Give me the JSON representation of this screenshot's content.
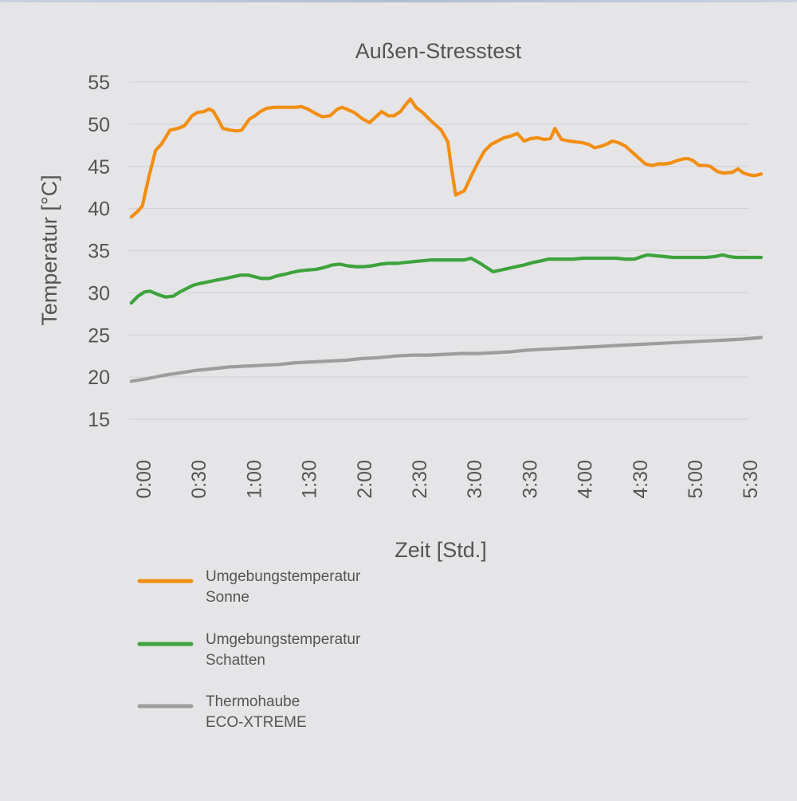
{
  "chart_data": {
    "type": "line",
    "title": "Außen-Stresstest",
    "xlabel": "Zeit [Std.]",
    "ylabel": "Temperatur [°C]",
    "ylim": [
      15,
      55
    ],
    "xlim": [
      0,
      5.5
    ],
    "yticks": [
      "15",
      "20",
      "25",
      "30",
      "35",
      "40",
      "45",
      "50",
      "55"
    ],
    "xticks": [
      {
        "label": "0:00",
        "x": 0
      },
      {
        "label": "0:30",
        "x": 0.5
      },
      {
        "label": "1:00",
        "x": 1.0
      },
      {
        "label": "1:30",
        "x": 1.5
      },
      {
        "label": "2:00",
        "x": 2.0
      },
      {
        "label": "2:30",
        "x": 2.5
      },
      {
        "label": "3:00",
        "x": 3.0
      },
      {
        "label": "3:30",
        "x": 3.5
      },
      {
        "label": "4:00",
        "x": 4.0
      },
      {
        "label": "4:30",
        "x": 4.5
      },
      {
        "label": "5:00",
        "x": 5.0
      },
      {
        "label": "5:30",
        "x": 5.5
      }
    ],
    "grid": true,
    "legend_position": "bottom-left",
    "series": [
      {
        "name": "Umgebungstemperatur Sonne",
        "name_lines": [
          "Umgebungstemperatur",
          "Sonne"
        ],
        "color": "#f28e12",
        "points": [
          [
            -0.11,
            39.0
          ],
          [
            -0.05,
            39.7
          ],
          [
            -0.01,
            40.3
          ],
          [
            0.05,
            43.8
          ],
          [
            0.11,
            46.9
          ],
          [
            0.16,
            47.6
          ],
          [
            0.19,
            48.2
          ],
          [
            0.24,
            49.3
          ],
          [
            0.31,
            49.5
          ],
          [
            0.37,
            49.8
          ],
          [
            0.44,
            51.0
          ],
          [
            0.49,
            51.4
          ],
          [
            0.55,
            51.5
          ],
          [
            0.59,
            51.8
          ],
          [
            0.63,
            51.6
          ],
          [
            0.68,
            50.5
          ],
          [
            0.72,
            49.5
          ],
          [
            0.79,
            49.3
          ],
          [
            0.85,
            49.2
          ],
          [
            0.89,
            49.3
          ],
          [
            0.96,
            50.6
          ],
          [
            1.01,
            51.0
          ],
          [
            1.06,
            51.5
          ],
          [
            1.12,
            51.9
          ],
          [
            1.19,
            52.0
          ],
          [
            1.25,
            52.0
          ],
          [
            1.31,
            52.0
          ],
          [
            1.38,
            52.0
          ],
          [
            1.43,
            52.1
          ],
          [
            1.49,
            51.8
          ],
          [
            1.57,
            51.2
          ],
          [
            1.62,
            50.9
          ],
          [
            1.69,
            51.0
          ],
          [
            1.76,
            51.8
          ],
          [
            1.8,
            52.0
          ],
          [
            1.84,
            51.8
          ],
          [
            1.91,
            51.4
          ],
          [
            1.99,
            50.6
          ],
          [
            2.05,
            50.2
          ],
          [
            2.1,
            50.8
          ],
          [
            2.16,
            51.5
          ],
          [
            2.22,
            51.0
          ],
          [
            2.27,
            51.0
          ],
          [
            2.33,
            51.5
          ],
          [
            2.37,
            52.2
          ],
          [
            2.42,
            53.0
          ],
          [
            2.47,
            52.0
          ],
          [
            2.53,
            51.4
          ],
          [
            2.6,
            50.5
          ],
          [
            2.65,
            49.9
          ],
          [
            2.7,
            49.3
          ],
          [
            2.76,
            47.9
          ],
          [
            2.79,
            45.0
          ],
          [
            2.83,
            41.6
          ],
          [
            2.91,
            42.1
          ],
          [
            2.97,
            43.8
          ],
          [
            3.03,
            45.4
          ],
          [
            3.09,
            46.8
          ],
          [
            3.15,
            47.6
          ],
          [
            3.21,
            48.0
          ],
          [
            3.27,
            48.4
          ],
          [
            3.33,
            48.6
          ],
          [
            3.39,
            48.9
          ],
          [
            3.45,
            48.0
          ],
          [
            3.51,
            48.3
          ],
          [
            3.57,
            48.4
          ],
          [
            3.63,
            48.2
          ],
          [
            3.69,
            48.3
          ],
          [
            3.73,
            49.5
          ],
          [
            3.79,
            48.2
          ],
          [
            3.86,
            48.0
          ],
          [
            3.92,
            47.9
          ],
          [
            3.98,
            47.8
          ],
          [
            4.04,
            47.6
          ],
          [
            4.09,
            47.2
          ],
          [
            4.15,
            47.4
          ],
          [
            4.21,
            47.7
          ],
          [
            4.25,
            48.0
          ],
          [
            4.31,
            47.8
          ],
          [
            4.37,
            47.4
          ],
          [
            4.43,
            46.7
          ],
          [
            4.49,
            46.0
          ],
          [
            4.55,
            45.3
          ],
          [
            4.61,
            45.1
          ],
          [
            4.67,
            45.3
          ],
          [
            4.73,
            45.3
          ],
          [
            4.78,
            45.4
          ],
          [
            4.84,
            45.7
          ],
          [
            4.9,
            45.9
          ],
          [
            4.94,
            45.9
          ],
          [
            4.98,
            45.7
          ],
          [
            5.04,
            45.1
          ],
          [
            5.1,
            45.1
          ],
          [
            5.14,
            45.0
          ],
          [
            5.2,
            44.4
          ],
          [
            5.26,
            44.2
          ],
          [
            5.34,
            44.3
          ],
          [
            5.39,
            44.7
          ],
          [
            5.44,
            44.2
          ],
          [
            5.49,
            44.0
          ],
          [
            5.54,
            43.9
          ],
          [
            5.6,
            44.1
          ]
        ]
      },
      {
        "name": "Umgebungstemperatur Schatten",
        "name_lines": [
          "Umgebungstemperatur",
          "Schatten"
        ],
        "color": "#3da33c",
        "points": [
          [
            -0.11,
            28.8
          ],
          [
            -0.05,
            29.6
          ],
          [
            0.01,
            30.1
          ],
          [
            0.06,
            30.2
          ],
          [
            0.13,
            29.8
          ],
          [
            0.2,
            29.5
          ],
          [
            0.27,
            29.6
          ],
          [
            0.33,
            30.1
          ],
          [
            0.39,
            30.5
          ],
          [
            0.45,
            30.9
          ],
          [
            0.51,
            31.1
          ],
          [
            0.59,
            31.3
          ],
          [
            0.66,
            31.5
          ],
          [
            0.74,
            31.7
          ],
          [
            0.81,
            31.9
          ],
          [
            0.88,
            32.1
          ],
          [
            0.95,
            32.1
          ],
          [
            1.01,
            31.9
          ],
          [
            1.07,
            31.7
          ],
          [
            1.14,
            31.7
          ],
          [
            1.21,
            32.0
          ],
          [
            1.28,
            32.2
          ],
          [
            1.34,
            32.4
          ],
          [
            1.41,
            32.6
          ],
          [
            1.49,
            32.7
          ],
          [
            1.57,
            32.8
          ],
          [
            1.64,
            33.0
          ],
          [
            1.71,
            33.3
          ],
          [
            1.78,
            33.4
          ],
          [
            1.85,
            33.2
          ],
          [
            1.93,
            33.1
          ],
          [
            2.0,
            33.1
          ],
          [
            2.07,
            33.2
          ],
          [
            2.15,
            33.4
          ],
          [
            2.22,
            33.5
          ],
          [
            2.3,
            33.5
          ],
          [
            2.37,
            33.6
          ],
          [
            2.45,
            33.7
          ],
          [
            2.53,
            33.8
          ],
          [
            2.61,
            33.9
          ],
          [
            2.68,
            33.9
          ],
          [
            2.76,
            33.9
          ],
          [
            2.83,
            33.9
          ],
          [
            2.91,
            33.9
          ],
          [
            2.97,
            34.1
          ],
          [
            3.04,
            33.6
          ],
          [
            3.1,
            33.1
          ],
          [
            3.17,
            32.5
          ],
          [
            3.24,
            32.7
          ],
          [
            3.31,
            32.9
          ],
          [
            3.38,
            33.1
          ],
          [
            3.45,
            33.3
          ],
          [
            3.53,
            33.6
          ],
          [
            3.61,
            33.8
          ],
          [
            3.67,
            34.0
          ],
          [
            3.75,
            34.0
          ],
          [
            3.83,
            34.0
          ],
          [
            3.9,
            34.0
          ],
          [
            3.98,
            34.1
          ],
          [
            4.06,
            34.1
          ],
          [
            4.14,
            34.1
          ],
          [
            4.21,
            34.1
          ],
          [
            4.29,
            34.1
          ],
          [
            4.37,
            34.0
          ],
          [
            4.45,
            34.0
          ],
          [
            4.52,
            34.3
          ],
          [
            4.57,
            34.5
          ],
          [
            4.64,
            34.4
          ],
          [
            4.72,
            34.3
          ],
          [
            4.8,
            34.2
          ],
          [
            4.87,
            34.2
          ],
          [
            4.95,
            34.2
          ],
          [
            5.02,
            34.2
          ],
          [
            5.1,
            34.2
          ],
          [
            5.18,
            34.3
          ],
          [
            5.25,
            34.5
          ],
          [
            5.31,
            34.3
          ],
          [
            5.37,
            34.2
          ],
          [
            5.45,
            34.2
          ],
          [
            5.52,
            34.2
          ],
          [
            5.6,
            34.2
          ]
        ]
      },
      {
        "name": "Thermohaube ECO-XTREME",
        "name_lines": [
          "Thermohaube",
          "ECO-XTREME"
        ],
        "color": "#9d9d9d",
        "points": [
          [
            -0.11,
            19.5
          ],
          [
            0.03,
            19.8
          ],
          [
            0.18,
            20.2
          ],
          [
            0.33,
            20.5
          ],
          [
            0.48,
            20.8
          ],
          [
            0.63,
            21.0
          ],
          [
            0.78,
            21.2
          ],
          [
            0.93,
            21.3
          ],
          [
            1.08,
            21.4
          ],
          [
            1.23,
            21.5
          ],
          [
            1.38,
            21.7
          ],
          [
            1.53,
            21.8
          ],
          [
            1.68,
            21.9
          ],
          [
            1.83,
            22.0
          ],
          [
            1.98,
            22.2
          ],
          [
            2.13,
            22.3
          ],
          [
            2.28,
            22.5
          ],
          [
            2.43,
            22.6
          ],
          [
            2.58,
            22.6
          ],
          [
            2.73,
            22.7
          ],
          [
            2.88,
            22.8
          ],
          [
            3.03,
            22.8
          ],
          [
            3.18,
            22.9
          ],
          [
            3.33,
            23.0
          ],
          [
            3.48,
            23.2
          ],
          [
            3.63,
            23.3
          ],
          [
            3.78,
            23.4
          ],
          [
            3.93,
            23.5
          ],
          [
            4.08,
            23.6
          ],
          [
            4.23,
            23.7
          ],
          [
            4.38,
            23.8
          ],
          [
            4.53,
            23.9
          ],
          [
            4.68,
            24.0
          ],
          [
            4.83,
            24.1
          ],
          [
            4.98,
            24.2
          ],
          [
            5.13,
            24.3
          ],
          [
            5.28,
            24.4
          ],
          [
            5.43,
            24.5
          ],
          [
            5.6,
            24.7
          ]
        ]
      }
    ]
  }
}
